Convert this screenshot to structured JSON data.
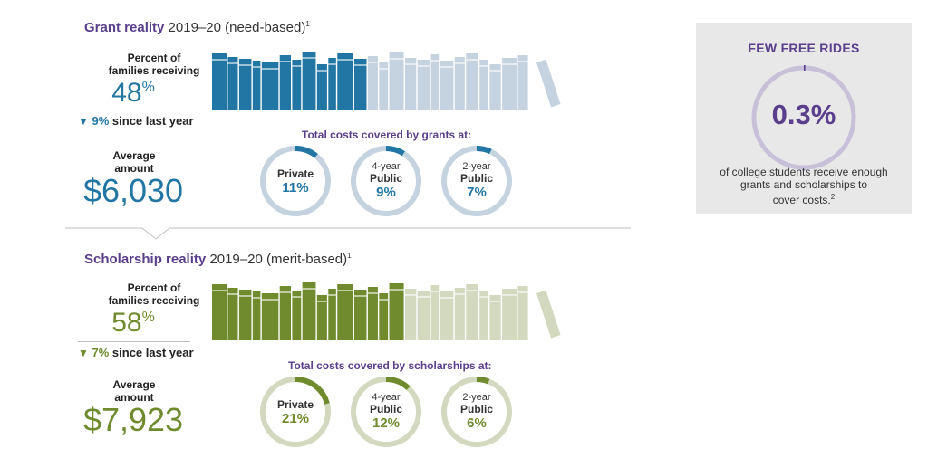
{
  "colors": {
    "grant": "#2276a4",
    "grant_light": "#c5d3e1",
    "scholarship": "#6f8b2e",
    "scholarship_light": "#d3d9bf",
    "sidebar_accent": "#5a3f8c",
    "sidebar_ring": "#c8bfd9"
  },
  "grant": {
    "title_bold": "Grant reality",
    "title_rest": " 2019–20 (need-based)",
    "title_sup": "1",
    "percent_label_line1": "Percent of",
    "percent_label_line2": "families receiving",
    "percent_value": "48",
    "percent_sign": "%",
    "change_arrow": "▼",
    "change_value": "9%",
    "change_text": " since last year",
    "avg_label_line1": "Average",
    "avg_label_line2": "amount",
    "avg_amount": "$6,030",
    "rings_heading": "Total costs covered by grants at:",
    "rings": [
      {
        "line1": "",
        "line2": "Private",
        "value": "11%"
      },
      {
        "line1": "4-year",
        "line2": "Public",
        "value": "9%"
      },
      {
        "line1": "2-year",
        "line2": "Public",
        "value": "7%"
      }
    ]
  },
  "scholarship": {
    "title_bold": "Scholarship reality",
    "title_rest": " 2019–20 (merit-based)",
    "title_sup": "1",
    "percent_label_line1": "Percent of",
    "percent_label_line2": "families receiving",
    "percent_value": "58",
    "percent_sign": "%",
    "change_arrow": "▼",
    "change_value": "7%",
    "change_text": " since last year",
    "avg_label_line1": "Average",
    "avg_label_line2": "amount",
    "avg_amount": "$7,923",
    "rings_heading": "Total costs covered by scholarships at:",
    "rings": [
      {
        "line1": "",
        "line2": "Private",
        "value": "21%"
      },
      {
        "line1": "4-year",
        "line2": "Public",
        "value": "12%"
      },
      {
        "line1": "2-year",
        "line2": "Public",
        "value": "6%"
      }
    ]
  },
  "sidebar": {
    "title": "FEW FREE RIDES",
    "value": "0.3%",
    "text_line1": "of college students receive enough",
    "text_line2": "grants and scholarships to",
    "text_line3": "cover costs.",
    "text_sup": "2"
  },
  "chart_data": [
    {
      "type": "bar",
      "categories": [
        "Percent of families receiving"
      ],
      "values": [
        48
      ],
      "ylim": [
        0,
        100
      ]
    },
    {
      "type": "pie",
      "categories": [
        "Private",
        "4-year Public",
        "2-year Public"
      ],
      "values": [
        11,
        9,
        7
      ],
      "title": "Total costs covered by grants at:"
    },
    {
      "type": "bar",
      "categories": [
        "Percent of families receiving"
      ],
      "values": [
        58
      ],
      "ylim": [
        0,
        100
      ]
    },
    {
      "type": "pie",
      "categories": [
        "Private",
        "4-year Public",
        "2-year Public"
      ],
      "values": [
        21,
        12,
        6
      ],
      "title": "Total costs covered by scholarships at:"
    },
    {
      "type": "pie",
      "categories": [
        "of college students receive enough grants and scholarships to cover costs."
      ],
      "values": [
        0.3
      ],
      "title": "FEW FREE RIDES"
    }
  ]
}
